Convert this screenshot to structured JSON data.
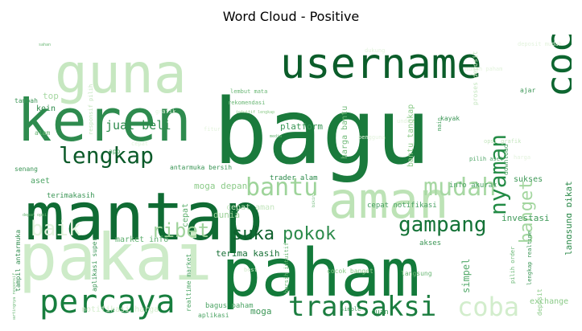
{
  "chart_data": {
    "type": "wordcloud",
    "title": "Word Cloud - Positive",
    "words": [
      {
        "text": "bagu",
        "color": "#1a7a3c"
      },
      {
        "text": "mantap",
        "color": "#0f6b33"
      },
      {
        "text": "paham",
        "color": "#137a3a"
      },
      {
        "text": "pakai",
        "color": "#cdebc8"
      },
      {
        "text": "keren",
        "color": "#2e8b4e"
      },
      {
        "text": "guna",
        "color": "#c6e7c0"
      },
      {
        "text": "username",
        "color": "#0b5d2a"
      },
      {
        "text": "cocok",
        "color": "#0d6630"
      },
      {
        "text": "aman",
        "color": "#bde3b6"
      },
      {
        "text": "percaya",
        "color": "#177e3e"
      },
      {
        "text": "transaksi",
        "color": "#1b7d3f"
      },
      {
        "text": "gampang",
        "color": "#137236"
      },
      {
        "text": "lengkap",
        "color": "#0b5a29"
      },
      {
        "text": "bantu",
        "color": "#9ed49a"
      },
      {
        "text": "mudah",
        "color": "#a7d8a3"
      },
      {
        "text": "nyaman",
        "color": "#238b45"
      },
      {
        "text": "banget",
        "color": "#a3d69f"
      },
      {
        "text": "coba",
        "color": "#d2edcc"
      },
      {
        "text": "suka",
        "color": "#0e5f2c"
      },
      {
        "text": "pokok",
        "color": "#2b8a4a"
      },
      {
        "text": "ribet",
        "color": "#9fd39b"
      },
      {
        "text": "baik",
        "color": "#e3f3dd"
      },
      {
        "text": "jual beli",
        "color": "#2c8a4b"
      },
      {
        "text": "moga depan",
        "color": "#8ccb89"
      },
      {
        "text": "terima kasih",
        "color": "#166f35"
      },
      {
        "text": "investasi",
        "color": "#3f9a59"
      },
      {
        "text": "market info",
        "color": "#5fb06f"
      },
      {
        "text": "platform",
        "color": "#3a9656"
      },
      {
        "text": "trader alam",
        "color": "#2b8a4a"
      },
      {
        "text": "sukses",
        "color": "#3e9857"
      },
      {
        "text": "info akurat",
        "color": "#4ca365"
      },
      {
        "text": "cepat notifikasi",
        "color": "#48a062"
      },
      {
        "text": "akses",
        "color": "#3a9554"
      },
      {
        "text": "aset",
        "color": "#4ea566"
      },
      {
        "text": "koin",
        "color": "#2f8b4c"
      },
      {
        "text": "terimakasih",
        "color": "#3a9555"
      },
      {
        "text": "dunia",
        "color": "#9ad098"
      },
      {
        "text": "cepat",
        "color": "#5fb06f"
      },
      {
        "text": "cepat aman",
        "color": "#c5e6bf"
      },
      {
        "text": "simpel",
        "color": "#55aa6b"
      },
      {
        "text": "langsung pikat",
        "color": "#2b8a4a"
      },
      {
        "text": "moga",
        "color": "#3b9656"
      },
      {
        "text": "cuan",
        "color": "#3f9a59"
      },
      {
        "text": "exchange",
        "color": "#8ccb89"
      },
      {
        "text": "aplikasi",
        "color": "#4ea566"
      },
      {
        "text": "notifikasi harga",
        "color": "#d4eecd"
      },
      {
        "text": "harga bantu",
        "color": "#73bb7b"
      },
      {
        "text": "bantu tangkap",
        "color": "#8ccb89"
      },
      {
        "text": "antarmuka bersih",
        "color": "#3a9555"
      },
      {
        "text": "tampil antarmuka",
        "color": "#2f8b4c"
      },
      {
        "text": "aplikasi super",
        "color": "#3a9555"
      },
      {
        "text": "realtime market",
        "color": "#4ea566"
      },
      {
        "text": "bersih intuitif",
        "color": "#6ab775"
      },
      {
        "text": "cocok banget",
        "color": "#8ccb89"
      },
      {
        "text": "bagus paham",
        "color": "#4ea566"
      },
      {
        "text": "lembut mata",
        "color": "#6ab775"
      },
      {
        "text": "rekomendasi",
        "color": "#6ab775"
      },
      {
        "text": "tambah",
        "color": "#3a9555"
      },
      {
        "text": "top",
        "color": "#a7d8a3"
      },
      {
        "text": "alam",
        "color": "#6ab775"
      },
      {
        "text": "app",
        "color": "#4ea566"
      },
      {
        "text": "senang",
        "color": "#3a9555"
      },
      {
        "text": "ajar",
        "color": "#3a9555"
      },
      {
        "text": "kayak",
        "color": "#3a9555"
      },
      {
        "text": "main",
        "color": "#4ea566"
      },
      {
        "text": "download",
        "color": "#4ea566"
      },
      {
        "text": "pilih aset",
        "color": "#4ea566"
      },
      {
        "text": "proses deposit",
        "color": "#c5e6bf"
      },
      {
        "text": "pilih order",
        "color": "#6ab775"
      },
      {
        "text": "lengkap realtime",
        "color": "#3a9555"
      },
      {
        "text": "deposit",
        "color": "#8ccb89"
      },
      {
        "text": "langsung",
        "color": "#6ab775"
      },
      {
        "text": "simple",
        "color": "#3a9555"
      },
      {
        "text": "media",
        "color": "#6ab775"
      },
      {
        "text": "sahan",
        "color": "#6ab775"
      },
      {
        "text": "depan opsi",
        "color": "#6ab775"
      },
      {
        "text": "chartingnya responsif",
        "color": "#6ab775"
      },
      {
        "text": "best",
        "color": "#d4eecd"
      },
      {
        "text": "responsif pilih",
        "color": "#c5e6bf"
      },
      {
        "text": "opsi grafik",
        "color": "#c5e6bf"
      },
      {
        "text": "bikin",
        "color": "#6ab775"
      },
      {
        "text": "deposit mudah",
        "color": "#e3f3dd"
      },
      {
        "text": "pengguna",
        "color": "#e3f3dd"
      },
      {
        "text": "unduh",
        "color": "#e3f3dd"
      },
      {
        "text": "grafik",
        "color": "#e3f3dd"
      },
      {
        "text": "intuitif lengkap",
        "color": "#8ccb89"
      },
      {
        "text": "mudah paham",
        "color": "#e3f3dd"
      },
      {
        "text": "fitur",
        "color": "#e3f3dd"
      },
      {
        "text": "cepat",
        "color": "#e3f3dd"
      },
      {
        "text": "harga",
        "color": "#e3f3dd"
      },
      {
        "text": "dukung",
        "color": "#e3f3dd"
      }
    ]
  }
}
